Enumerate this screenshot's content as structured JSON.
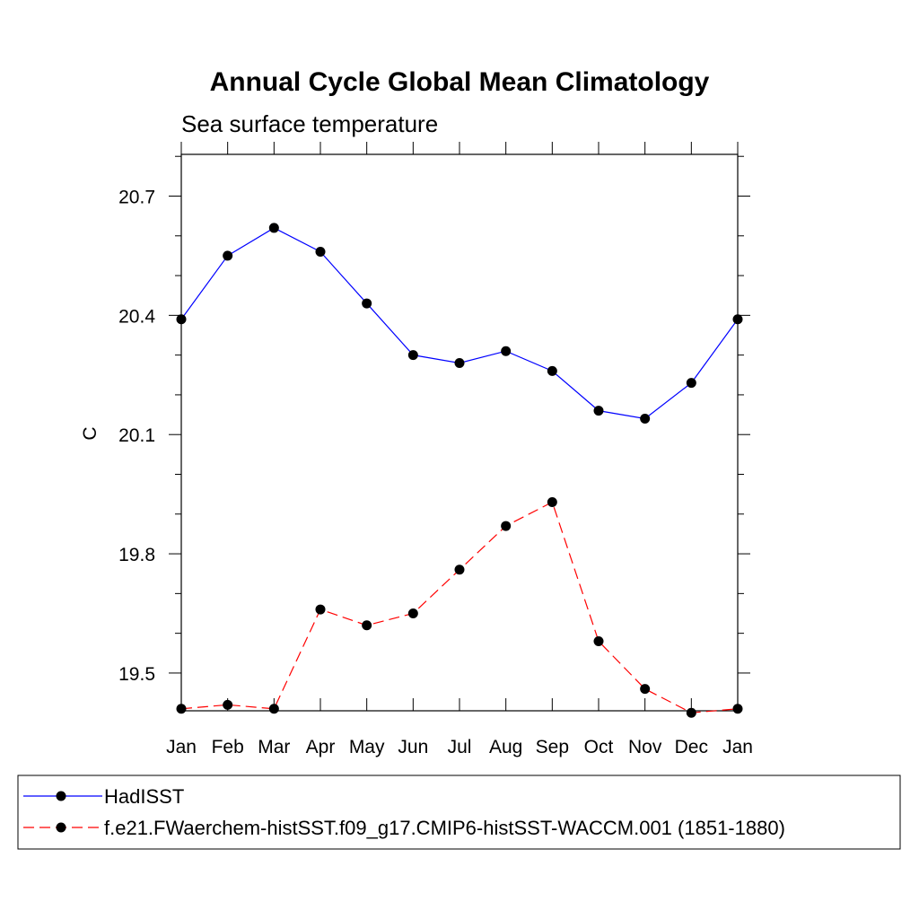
{
  "chart_data": {
    "type": "line",
    "title": "Annual Cycle Global Mean Climatology",
    "subtitle": "Sea surface temperature",
    "ylabel": "C",
    "xlabel": "",
    "categories": [
      "Jan",
      "Feb",
      "Mar",
      "Apr",
      "May",
      "Jun",
      "Jul",
      "Aug",
      "Sep",
      "Oct",
      "Nov",
      "Dec",
      "Jan"
    ],
    "ylim": [
      19.405,
      20.805
    ],
    "yticks": [
      19.5,
      19.8,
      20.1,
      20.4,
      20.7
    ],
    "ytick_labels": [
      "19.5",
      "19.8",
      "20.1",
      "20.4",
      "20.7"
    ],
    "series": [
      {
        "name": "HadISST",
        "color": "#0000ff",
        "dash": "solid",
        "values": [
          20.39,
          20.55,
          20.62,
          20.56,
          20.43,
          20.3,
          20.28,
          20.31,
          20.26,
          20.16,
          20.14,
          20.23,
          20.39
        ]
      },
      {
        "name": "f.e21.FWaerchem-histSST.f09_g17.CMIP6-histSST-WACCM.001 (1851-1880)",
        "color": "#ff0000",
        "dash": "dashed",
        "values": [
          19.41,
          19.42,
          19.41,
          19.66,
          19.62,
          19.65,
          19.76,
          19.87,
          19.93,
          19.58,
          19.46,
          19.4,
          19.41
        ]
      }
    ],
    "grid": false,
    "legend_position": "bottom"
  }
}
